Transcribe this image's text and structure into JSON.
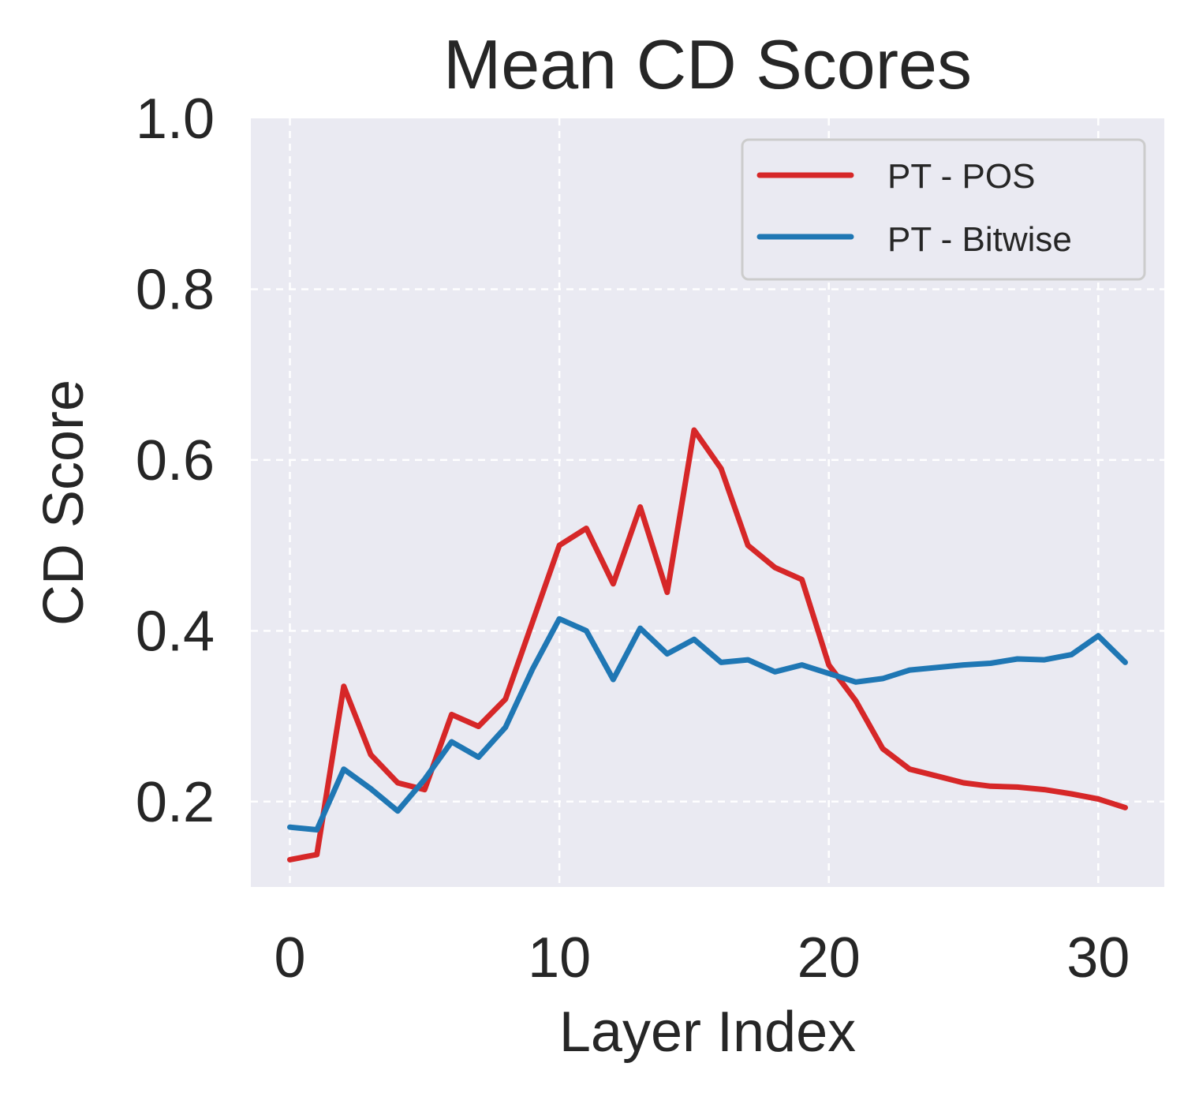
{
  "chart_data": {
    "type": "line",
    "title": "Mean CD Scores",
    "xlabel": "Layer Index",
    "ylabel": "CD Score",
    "xlim": [
      -1.45,
      32.45
    ],
    "ylim": [
      0.1,
      1.0
    ],
    "xticks": [
      0,
      10,
      20,
      30
    ],
    "xtick_labels": [
      "0",
      "10",
      "20",
      "30"
    ],
    "yticks": [
      0.2,
      0.4,
      0.6,
      0.8,
      1.0
    ],
    "ytick_labels": [
      "0.2",
      "0.4",
      "0.6",
      "0.8",
      "1.0"
    ],
    "grid": true,
    "legend_position": "top-right",
    "x": [
      0,
      1,
      2,
      3,
      4,
      5,
      6,
      7,
      8,
      9,
      10,
      11,
      12,
      13,
      14,
      15,
      16,
      17,
      18,
      19,
      20,
      21,
      22,
      23,
      24,
      25,
      26,
      27,
      28,
      29,
      30,
      31
    ],
    "series": [
      {
        "name": "PT - POS",
        "color": "#d62728",
        "values": [
          0.132,
          0.138,
          0.335,
          0.255,
          0.222,
          0.214,
          0.302,
          0.288,
          0.32,
          0.41,
          0.5,
          0.52,
          0.455,
          0.545,
          0.445,
          0.635,
          0.59,
          0.5,
          0.474,
          0.46,
          0.36,
          0.318,
          0.262,
          0.238,
          0.23,
          0.222,
          0.218,
          0.217,
          0.214,
          0.209,
          0.203,
          0.193
        ]
      },
      {
        "name": "PT - Bitwise",
        "color": "#1f77b4",
        "values": [
          0.17,
          0.167,
          0.238,
          0.215,
          0.189,
          0.226,
          0.27,
          0.252,
          0.287,
          0.355,
          0.414,
          0.4,
          0.343,
          0.403,
          0.373,
          0.39,
          0.363,
          0.366,
          0.352,
          0.36,
          0.35,
          0.34,
          0.344,
          0.354,
          0.357,
          0.36,
          0.362,
          0.367,
          0.366,
          0.372,
          0.394,
          0.363
        ]
      }
    ]
  }
}
